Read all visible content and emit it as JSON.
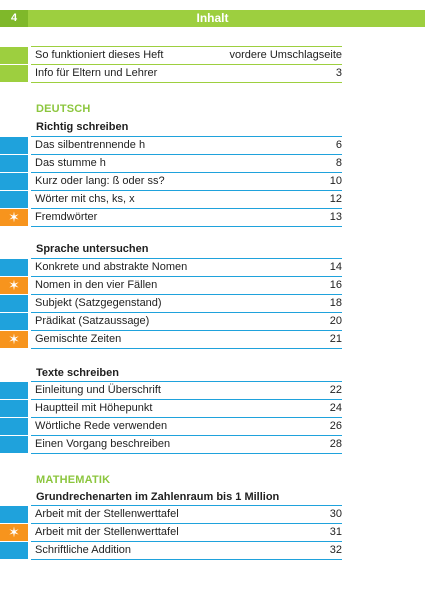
{
  "header": {
    "page_number": "4",
    "title": "Inhalt"
  },
  "intro": [
    {
      "label": "So funktioniert dieses Heft",
      "page": "vordere Umschlagseite"
    },
    {
      "label": "Info für Eltern und Lehrer",
      "page": "3"
    }
  ],
  "deutsch": {
    "title": "DEUTSCH",
    "groups": [
      {
        "title": "Richtig schreiben",
        "items": [
          {
            "label": "Das silbentrennende h",
            "page": "6",
            "star": false
          },
          {
            "label": "Das stumme h",
            "page": "8",
            "star": false
          },
          {
            "label": "Kurz oder lang: ß oder ss?",
            "page": "10",
            "star": false
          },
          {
            "label": "Wörter mit chs, ks, x",
            "page": "12",
            "star": false
          },
          {
            "label": "Fremdwörter",
            "page": "13",
            "star": true
          }
        ]
      },
      {
        "title": "Sprache untersuchen",
        "items": [
          {
            "label": "Konkrete und abstrakte Nomen",
            "page": "14",
            "star": false
          },
          {
            "label": "Nomen in den vier Fällen",
            "page": "16",
            "star": true
          },
          {
            "label": "Subjekt (Satzgegenstand)",
            "page": "18",
            "star": false
          },
          {
            "label": "Prädikat (Satzaussage)",
            "page": "20",
            "star": false
          },
          {
            "label": "Gemischte Zeiten",
            "page": "21",
            "star": true
          }
        ]
      },
      {
        "title": "Texte schreiben",
        "items": [
          {
            "label": "Einleitung und Überschrift",
            "page": "22",
            "star": false
          },
          {
            "label": "Hauptteil mit Höhepunkt",
            "page": "24",
            "star": false
          },
          {
            "label": "Wörtliche Rede verwenden",
            "page": "26",
            "star": false
          },
          {
            "label": "Einen Vorgang beschreiben",
            "page": "28",
            "star": false
          }
        ]
      }
    ]
  },
  "mathematik": {
    "title": "MATHEMATIK",
    "groups": [
      {
        "title": "Grundrechenarten im Zahlenraum bis 1 Million",
        "items": [
          {
            "label": "Arbeit mit der Stellenwerttafel",
            "page": "30",
            "star": false
          },
          {
            "label": "Arbeit mit der Stellenwerttafel",
            "page": "31",
            "star": true
          },
          {
            "label": "Schriftliche Addition",
            "page": "32",
            "star": false
          }
        ]
      }
    ]
  },
  "colors": {
    "green": "#9dcf3f",
    "blue": "#1fa2dc",
    "orange": "#f7941d",
    "section_green": "#8cc63e"
  },
  "icons": {
    "star": "star-icon"
  }
}
